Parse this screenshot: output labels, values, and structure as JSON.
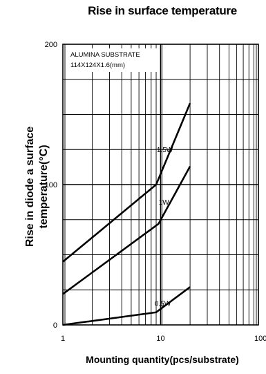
{
  "chart_data": {
    "type": "line",
    "title": "Rise in surface temperature",
    "xlabel": "Mounting quantity(pcs/substrate)",
    "ylabel_lines": [
      "Rise in diode a surface",
      "temperature(°C)"
    ],
    "x_scale": "log",
    "xlim": [
      1,
      100
    ],
    "ylim": [
      0,
      200
    ],
    "x_tick_labels": [
      "1",
      "10",
      "100"
    ],
    "y_tick_labels": [
      "0",
      "100",
      "200"
    ],
    "grid": true,
    "annotation_lines": [
      "ALUMINA SUBSTRATE",
      "114X124X1.6(mm)"
    ],
    "series": [
      {
        "name": "1.5W",
        "x": [
          1,
          9,
          20
        ],
        "y": [
          45,
          100,
          158
        ]
      },
      {
        "name": "1W",
        "x": [
          1,
          9.5,
          20
        ],
        "y": [
          22,
          72,
          113
        ]
      },
      {
        "name": "0.5W",
        "x": [
          1,
          9,
          20
        ],
        "y": [
          0,
          9,
          27
        ]
      }
    ]
  }
}
